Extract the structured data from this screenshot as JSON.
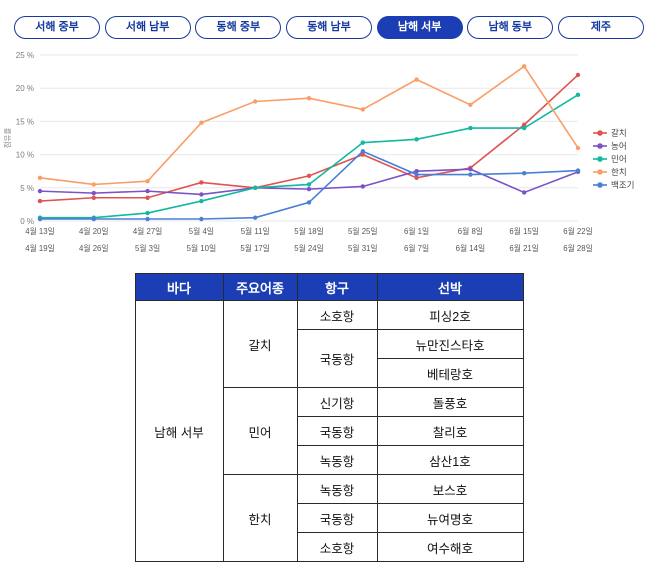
{
  "tabs": [
    {
      "label": "서해 중부",
      "selected": false
    },
    {
      "label": "서해 남부",
      "selected": false
    },
    {
      "label": "동해 중부",
      "selected": false
    },
    {
      "label": "동해 남부",
      "selected": false
    },
    {
      "label": "남해 서부",
      "selected": true
    },
    {
      "label": "남해 동부",
      "selected": false
    },
    {
      "label": "제주",
      "selected": false
    }
  ],
  "colors": {
    "accent_blue": "#1c3eb5",
    "tab_text": "#163a9e",
    "grid": "#e8e8ee",
    "axis_text": "#7a7a85"
  },
  "chart_data": {
    "type": "line",
    "ylabel": "점유율",
    "ylim": [
      0,
      25
    ],
    "ytick_step": 5,
    "ytick_suffix": " %",
    "grid": true,
    "legend_position": "right",
    "x_labels_top": [
      "4월 13일",
      "4월 20일",
      "4월 27일",
      "5월 4일",
      "5월 11일",
      "5월 18일",
      "5월 25일",
      "6월 1일",
      "6월 8일",
      "6월 15일",
      "6월 22일"
    ],
    "x_labels_bottom": [
      "4월 19일",
      "4월 26일",
      "5월 3일",
      "5월 10일",
      "5월 17일",
      "5월 24일",
      "5월 31일",
      "6월 7일",
      "6월 14일",
      "6월 21일",
      "6월 28일"
    ],
    "series": [
      {
        "name": "갈치",
        "color": "#df5350",
        "values": [
          3.0,
          3.5,
          3.5,
          5.8,
          5.0,
          6.8,
          10.0,
          6.5,
          8.0,
          14.5,
          22.0
        ]
      },
      {
        "name": "농어",
        "color": "#7b52c7",
        "values": [
          4.5,
          4.2,
          4.5,
          4.0,
          5.0,
          4.8,
          5.2,
          7.5,
          7.8,
          4.3,
          7.4
        ]
      },
      {
        "name": "민어",
        "color": "#10b9a0",
        "values": [
          0.5,
          0.5,
          1.2,
          3.0,
          5.0,
          5.5,
          11.8,
          12.3,
          14.0,
          14.0,
          19.0
        ]
      },
      {
        "name": "한치",
        "color": "#fb9d66",
        "values": [
          6.5,
          5.5,
          6.0,
          14.8,
          18.0,
          18.5,
          16.8,
          21.3,
          17.5,
          23.3,
          11.0
        ]
      },
      {
        "name": "백조기",
        "color": "#4a7fd4",
        "values": [
          0.3,
          0.3,
          0.3,
          0.3,
          0.5,
          2.8,
          10.5,
          7.0,
          7.0,
          7.2,
          7.6
        ]
      }
    ]
  },
  "table": {
    "headers": [
      "바다",
      "주요어종",
      "항구",
      "선박"
    ],
    "sea": "남해 서부",
    "groups": [
      {
        "species": "갈치",
        "rows": [
          {
            "port": "소호항",
            "port_rowspan": 1,
            "ship": "피싱2호"
          },
          {
            "port": "국동항",
            "port_rowspan": 2,
            "ship": "뉴만진스타호"
          },
          {
            "port": null,
            "ship": "베테랑호"
          }
        ]
      },
      {
        "species": "민어",
        "rows": [
          {
            "port": "신기항",
            "port_rowspan": 1,
            "ship": "돌풍호"
          },
          {
            "port": "국동항",
            "port_rowspan": 1,
            "ship": "찰리호"
          },
          {
            "port": "녹동항",
            "port_rowspan": 1,
            "ship": "삼산1호"
          }
        ]
      },
      {
        "species": "한치",
        "rows": [
          {
            "port": "녹동항",
            "port_rowspan": 1,
            "ship": "보스호"
          },
          {
            "port": "국동항",
            "port_rowspan": 1,
            "ship": "뉴여명호"
          },
          {
            "port": "소호항",
            "port_rowspan": 1,
            "ship": "여수해호"
          }
        ]
      }
    ]
  }
}
